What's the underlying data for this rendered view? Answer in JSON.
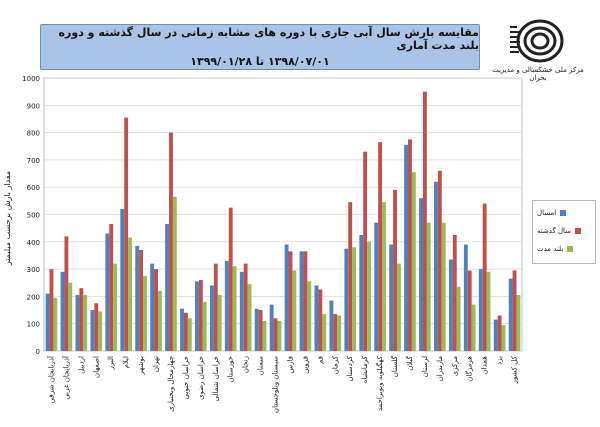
{
  "title": {
    "line1": "مقایسه بارش سال آبی جاری با دوره های مشابه زمانی در سال گذشته و دوره بلند مدت آماری",
    "line2": "۱۳۹۸/۰۷/۰۱ تا ۱۳۹۹/۰۱/۲۸"
  },
  "logo": {
    "caption": "مرکز ملی خشکسالی و مدیریت بحران",
    "icon": "spiral-logo-icon"
  },
  "colors": {
    "current": "#4f81bd",
    "last_year": "#c0504d",
    "long_term": "#9bbb59"
  },
  "chart_data": {
    "type": "bar",
    "ylabel": "مقدار بارش برحسب میلیمتر",
    "ylim": [
      0,
      1000
    ],
    "yticks": [
      "0",
      "100",
      "200",
      "300",
      "400",
      "500",
      "600",
      "700",
      "800",
      "900",
      "1000"
    ],
    "grid": true,
    "legend_position": "right",
    "categories": [
      "آذربایجان شرقی",
      "آذربایجان غربی",
      "اردبیل",
      "اصفهان",
      "البرز",
      "ایلام",
      "بوشهر",
      "تهران",
      "چهارمحال وبختیاری",
      "خراسان جنوبی",
      "خراسان رضوی",
      "خراسان شمالی",
      "خوزستان",
      "زنجان",
      "سمنان",
      "سیستان وبلوچستان",
      "فارس",
      "قزوین",
      "قم",
      "کرمان",
      "کردستان",
      "کرمانشاه",
      "کهگیلویه وبویراحمد",
      "گلستان",
      "گیلان",
      "لرستان",
      "مازندران",
      "مرکزی",
      "هرمزگان",
      "همدان",
      "یزد",
      "کل کشور"
    ],
    "series": [
      {
        "name": "امسال",
        "values": [
          210,
          290,
          205,
          150,
          430,
          520,
          385,
          320,
          465,
          155,
          255,
          240,
          330,
          290,
          155,
          170,
          390,
          365,
          240,
          185,
          375,
          425,
          470,
          390,
          755,
          560,
          620,
          335,
          390,
          300,
          115,
          265
        ]
      },
      {
        "name": "سال گذشته",
        "values": [
          300,
          420,
          230,
          175,
          465,
          855,
          370,
          300,
          800,
          140,
          260,
          320,
          525,
          320,
          150,
          120,
          365,
          365,
          225,
          135,
          545,
          730,
          765,
          590,
          775,
          950,
          660,
          425,
          295,
          540,
          130,
          295
        ]
      },
      {
        "name": "بلند مدت",
        "values": [
          195,
          250,
          205,
          145,
          320,
          415,
          275,
          220,
          565,
          120,
          180,
          205,
          310,
          245,
          110,
          110,
          295,
          255,
          135,
          130,
          380,
          400,
          545,
          320,
          655,
          470,
          470,
          235,
          170,
          290,
          95,
          205
        ]
      }
    ]
  }
}
